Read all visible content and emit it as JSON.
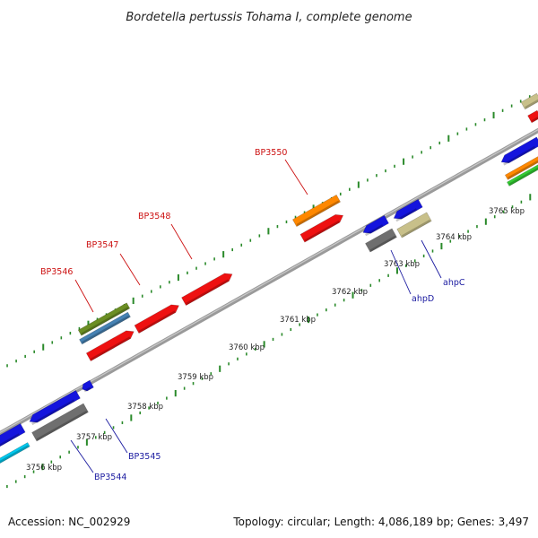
{
  "title": "Bordetella pertussis Tohama I, complete genome",
  "footer": {
    "accession": "Accession: NC_002929",
    "summary": "Topology: circular; Length: 4,086,189 bp; Genes: 3,497"
  },
  "colors": {
    "backbone": "#8a8a8a",
    "tick": "#2a8a2a",
    "red": "#ee1111",
    "blue": "#1414dd",
    "orange": "#ff8800",
    "olive": "#6b8e23",
    "steel": "#4682b4",
    "gray": "#6f6f6f",
    "khaki": "#c8c08a",
    "cyan": "#00c8ee",
    "green": "#33cc33",
    "label_red": "#cc1111",
    "label_blue": "#1a1aa0"
  },
  "scale_labels": [
    "3756 kbp",
    "3757 kbp",
    "3758 kbp",
    "3759 kbp",
    "3760 kbp",
    "3761 kbp",
    "3762 kbp",
    "3763 kbp",
    "3764 kbp",
    "3765 kbp"
  ],
  "gene_labels": {
    "forward": [
      "BP3546",
      "BP3547",
      "BP3548",
      "BP3550"
    ],
    "reverse": [
      "BP3544",
      "BP3545",
      "ahpD",
      "ahpC"
    ]
  }
}
